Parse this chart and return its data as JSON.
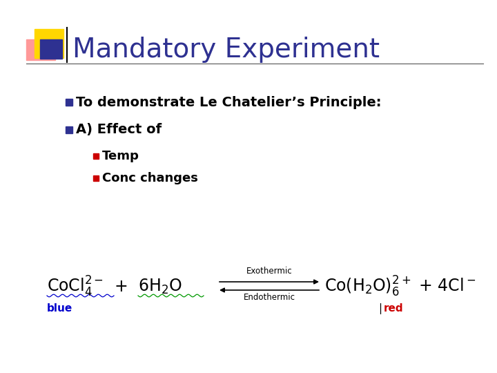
{
  "title": "Mandatory Experiment",
  "title_color": "#2E3191",
  "title_fontsize": 28,
  "bg_color": "#FFFFFF",
  "bullet1": "To demonstrate Le Chatelier’s Principle:",
  "bullet2": "A) Effect of",
  "sub_bullet1": "Temp",
  "sub_bullet2": "Conc changes",
  "bullet_color": "#000000",
  "bullet_square_color": "#2E3191",
  "sub_bullet_square_color": "#CC0000",
  "header_bar_color": "#555555",
  "decoration_yellow": "#FFD700",
  "decoration_pink": "#FF9999",
  "decoration_blue": "#2E3191",
  "equation_color": "#000000",
  "blue_label_color": "#0000CC",
  "red_label_color": "#CC0000",
  "green_wave_color": "#009900"
}
